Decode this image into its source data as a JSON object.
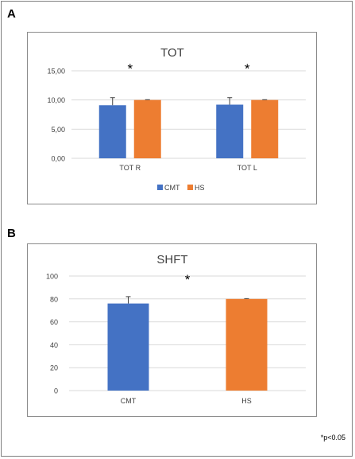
{
  "figure": {
    "footnote": "*p<0.05"
  },
  "chart_data": [
    {
      "panel_label": "A",
      "type": "bar",
      "title": "TOT",
      "categories": [
        "TOT R",
        "TOT L"
      ],
      "series": [
        {
          "name": "CMT",
          "values": [
            9.1,
            9.2
          ],
          "error": [
            1.3,
            1.2
          ],
          "color": "#4472c4"
        },
        {
          "name": "HS",
          "values": [
            10.0,
            10.0
          ],
          "error": [
            0.05,
            0.05
          ],
          "color": "#ed7d31"
        }
      ],
      "significance": [
        "*",
        "*"
      ],
      "ylim": [
        0,
        15
      ],
      "yticks": [
        "0,00",
        "5,00",
        "10,00",
        "15,00"
      ],
      "grid": true,
      "legend": "bottom",
      "xlabel": "",
      "ylabel": ""
    },
    {
      "panel_label": "B",
      "type": "bar",
      "title": "SHFT",
      "categories": [
        "CMT",
        "HS"
      ],
      "values": [
        76,
        80
      ],
      "error": [
        6,
        0.3
      ],
      "colors": [
        "#4472c4",
        "#ed7d31"
      ],
      "significance": "*",
      "ylim": [
        0,
        100
      ],
      "yticks": [
        "0",
        "20",
        "40",
        "60",
        "80",
        "100"
      ],
      "grid": true,
      "xlabel": "",
      "ylabel": ""
    }
  ]
}
